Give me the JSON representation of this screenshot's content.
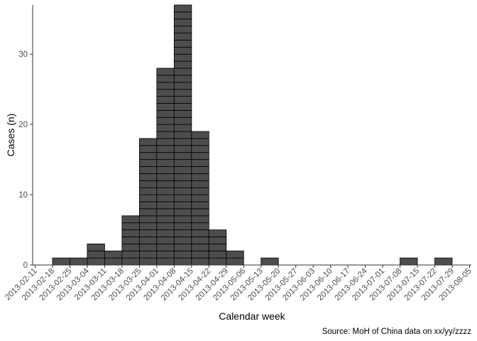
{
  "chart_data": {
    "type": "bar",
    "style": "stacked unit blocks (one block per case)",
    "xlabel": "Calendar week",
    "ylabel": "Cases (n)",
    "caption": "Source: MoH of China data on xx/yy/zzzz",
    "categories": [
      "2013-02-11",
      "2013-02-18",
      "2013-02-25",
      "2013-03-04",
      "2013-03-11",
      "2013-03-18",
      "2013-03-25",
      "2013-04-01",
      "2013-04-08",
      "2013-04-15",
      "2013-04-22",
      "2013-04-29",
      "2013-05-06",
      "2013-05-13",
      "2013-05-20",
      "2013-05-27",
      "2013-06-03",
      "2013-06-10",
      "2013-06-17",
      "2013-06-24",
      "2013-07-01",
      "2013-07-08",
      "2013-07-15",
      "2013-07-22",
      "2013-07-29",
      "2013-08-05"
    ],
    "values": [
      0,
      1,
      1,
      3,
      2,
      7,
      18,
      28,
      37,
      19,
      5,
      2,
      0,
      1,
      0,
      0,
      0,
      0,
      0,
      0,
      0,
      1,
      0,
      1,
      0,
      0
    ],
    "yticks": [
      0,
      10,
      20,
      30
    ],
    "ylim": [
      0,
      37
    ],
    "grid": false,
    "bar_color": "#4d4d4d",
    "bar_edge_color": "#000000"
  }
}
